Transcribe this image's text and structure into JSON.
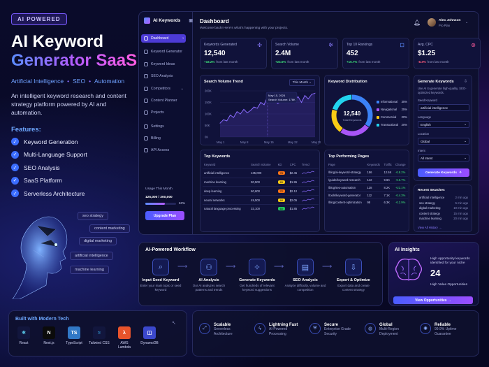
{
  "hero": {
    "badge": "AI POWERED",
    "title1": "AI Keyword",
    "title2": "Generator SaaS",
    "tag1": "Artificial Intelligence",
    "tag2": "SEO",
    "tag3": "Automation",
    "desc": "An intelligent keyword research and content strategy platform powered by AI and automation.",
    "features_title": "Features:",
    "features": [
      "Keyword Generation",
      "Multi-Language Support",
      "SEO Analysis",
      "SaaS Platform",
      "Serverless Architecture"
    ],
    "floating": [
      "seo strategy",
      "content marketing",
      "digital marketing",
      "artificial intelligence",
      "machine learning"
    ]
  },
  "app": {
    "logo": "AI Keywords",
    "page_title": "Dashboard",
    "page_sub": "Welcome back! Here's what's happening with your projects.",
    "user_name": "Alex Johnson",
    "user_plan": "Pro Plan",
    "nav": [
      "Dashboard",
      "Keyword Generator",
      "Keyword Ideas",
      "SEO Analysis",
      "Competitors",
      "Content Planner",
      "Projects",
      "Settings",
      "Billing",
      "API Access"
    ],
    "usage_label": "Usage This Month",
    "usage_value": "125,000 / 200,000",
    "usage_pct": "63%",
    "usage_fraction": 0.63,
    "upgrade": "Upgrade Plan"
  },
  "stats": [
    {
      "label": "Keywords Generated",
      "value": "12,540",
      "delta": "+18.2%",
      "note": "from last month",
      "up": true
    },
    {
      "label": "Search Volume",
      "value": "2.4M",
      "delta": "+24.5%",
      "note": "from last month",
      "up": true
    },
    {
      "label": "Top 10 Rankings",
      "value": "452",
      "delta": "+15.7%",
      "note": "from last month",
      "up": true
    },
    {
      "label": "Avg. CPC",
      "value": "$1.25",
      "delta": "-8.3%",
      "note": "from last month",
      "up": false
    }
  ],
  "trend": {
    "title": "Search Volume Trend",
    "range": "This Month",
    "tooltip_date": "May 15, 2024",
    "tooltip_label": "Search Volume: 176K",
    "ylabels": [
      "200K",
      "150K",
      "100K",
      "50K",
      "0K"
    ],
    "xlabels": [
      "May 1",
      "May 8",
      "May 15",
      "May 22",
      "May 29"
    ]
  },
  "chart_data": {
    "type": "line",
    "title": "Search Volume Trend",
    "x": [
      "May 1",
      "May 2",
      "May 3",
      "May 4",
      "May 5",
      "May 6",
      "May 7",
      "May 8",
      "May 9",
      "May 10",
      "May 11",
      "May 12",
      "May 13",
      "May 14",
      "May 15",
      "May 16",
      "May 17",
      "May 18",
      "May 19",
      "May 20",
      "May 21",
      "May 22",
      "May 23",
      "May 24",
      "May 25",
      "May 26",
      "May 27",
      "May 28",
      "May 29"
    ],
    "values": [
      60,
      75,
      70,
      95,
      85,
      110,
      100,
      120,
      105,
      115,
      130,
      125,
      150,
      140,
      176,
      150,
      160,
      145,
      155,
      165,
      150,
      170,
      160,
      175,
      150,
      180,
      165,
      185,
      190
    ],
    "ylim": [
      0,
      200
    ],
    "unit": "K"
  },
  "distribution": {
    "title": "Keyword Distribution",
    "total": "12,540",
    "total_label": "Total Keywords",
    "items": [
      {
        "name": "Informational",
        "pct": 35,
        "label": "35%",
        "color": "#3b82f6"
      },
      {
        "name": "Navigational",
        "pct": 25,
        "label": "25%",
        "color": "#a855f7"
      },
      {
        "name": "Commercial",
        "pct": 20,
        "label": "20%",
        "color": "#facc15"
      },
      {
        "name": "Transactional",
        "pct": 20,
        "label": "20%",
        "color": "#22d3ee"
      }
    ]
  },
  "gen": {
    "title": "Generate Keywords",
    "sub": "Use AI to generate high-quality, SEO-optimized keywords.",
    "seed_label": "Seed Keyword",
    "seed_value": "artificial intelligence",
    "lang_label": "Language",
    "lang_value": "English",
    "loc_label": "Location",
    "loc_value": "Global",
    "intent_label": "Intent",
    "intent_value": "All Intent",
    "button": "Generate Keywords"
  },
  "recent": {
    "title": "Recent Searches",
    "items": [
      [
        "artificial intelligence",
        "2 min ago"
      ],
      [
        "seo strategy",
        "5 min ago"
      ],
      [
        "digital marketing",
        "10 min ago"
      ],
      [
        "content strategy",
        "15 min ago"
      ],
      [
        "machine learning",
        "20 min ago"
      ]
    ],
    "view_all": "View All History →"
  },
  "topkw": {
    "title": "Top Keywords",
    "headers": [
      "Keyword",
      "Search Volume",
      "KD",
      "CPC",
      "Trend"
    ],
    "rows": [
      [
        "artificial intelligence",
        "135,000",
        "78",
        "$2.45"
      ],
      [
        "machine learning",
        "90,500",
        "65",
        "$1.95"
      ],
      [
        "deep learning",
        "60,600",
        "72",
        "$2.12"
      ],
      [
        "neural networks",
        "49,500",
        "68",
        "$2.05"
      ],
      [
        "natural language processing",
        "33,100",
        "60",
        "$1.85"
      ]
    ],
    "kd_colors": [
      "#f97316",
      "#facc15",
      "#f97316",
      "#facc15",
      "#22c55e"
    ]
  },
  "toppages": {
    "title": "Top Performing Pages",
    "headers": [
      "Page",
      "Keywords",
      "Traffic",
      "Change"
    ],
    "rows": [
      [
        "/blog/ai-keyword-strategy",
        "156",
        "12.5K",
        "+18.2%"
      ],
      [
        "/guide/keyword-research",
        "142",
        "9.6K",
        "+15.7%"
      ],
      [
        "/blog/seo-automation",
        "128",
        "8.2K",
        "+22.1%"
      ],
      [
        "/tools/keyword-generator",
        "112",
        "7.1K",
        "+14.3%"
      ],
      [
        "/blog/content-optimization",
        "98",
        "6.3K",
        "+12.9%"
      ]
    ]
  },
  "workflow": {
    "title": "AI-Powered Workflow",
    "steps": [
      {
        "icon": "⌕",
        "t": "Input Seed Keyword",
        "d": "Enter your main topic or seed keyword"
      },
      {
        "icon": "⚇",
        "t": "AI Analysis",
        "d": "Our AI analyzes search patterns and trends"
      },
      {
        "icon": "✧",
        "t": "Generate Keywords",
        "d": "Get hundreds of relevant keyword suggestions"
      },
      {
        "icon": "▤",
        "t": "SEO Analysis",
        "d": "Analyze difficulty, volume and competition"
      },
      {
        "icon": "⇩",
        "t": "Export & Optimize",
        "d": "Export data and create content strategy"
      }
    ]
  },
  "insights": {
    "title": "AI Insights",
    "text": "High opportunity keywords identified for your niche",
    "value": "24",
    "value_label": "High Value Opportunities",
    "button": "View Opportunities →"
  },
  "tech": {
    "title": "Built with Modern Tech",
    "items": [
      {
        "name": "React",
        "icon": "⚛",
        "bg": "#12163d",
        "fg": "#61dafb"
      },
      {
        "name": "Next.js",
        "icon": "N",
        "bg": "#0b0b0b",
        "fg": "#ffffff"
      },
      {
        "name": "TypeScript",
        "icon": "TS",
        "bg": "#3178c6",
        "fg": "#ffffff"
      },
      {
        "name": "Tailwind CSS",
        "icon": "≈",
        "bg": "#12163d",
        "fg": "#38bdf8"
      },
      {
        "name": "AWS Lambda",
        "icon": "λ",
        "bg": "#e8532b",
        "fg": "#ffffff"
      },
      {
        "name": "DynamoDB",
        "icon": "◫",
        "bg": "#3b48cc",
        "fg": "#ffffff"
      }
    ]
  },
  "benefits": [
    {
      "icon": "⤢",
      "t": "Scalable",
      "d": "Serverless Architecture"
    },
    {
      "icon": "ϟ",
      "t": "Lightning Fast",
      "d": "AI-Powered Processing"
    },
    {
      "icon": "⛨",
      "t": "Secure",
      "d": "Enterprise Grade Security"
    },
    {
      "icon": "◍",
      "t": "Global",
      "d": "Multi-Region Deployment"
    },
    {
      "icon": "✺",
      "t": "Reliable",
      "d": "99.9% Uptime Guarantee"
    }
  ]
}
